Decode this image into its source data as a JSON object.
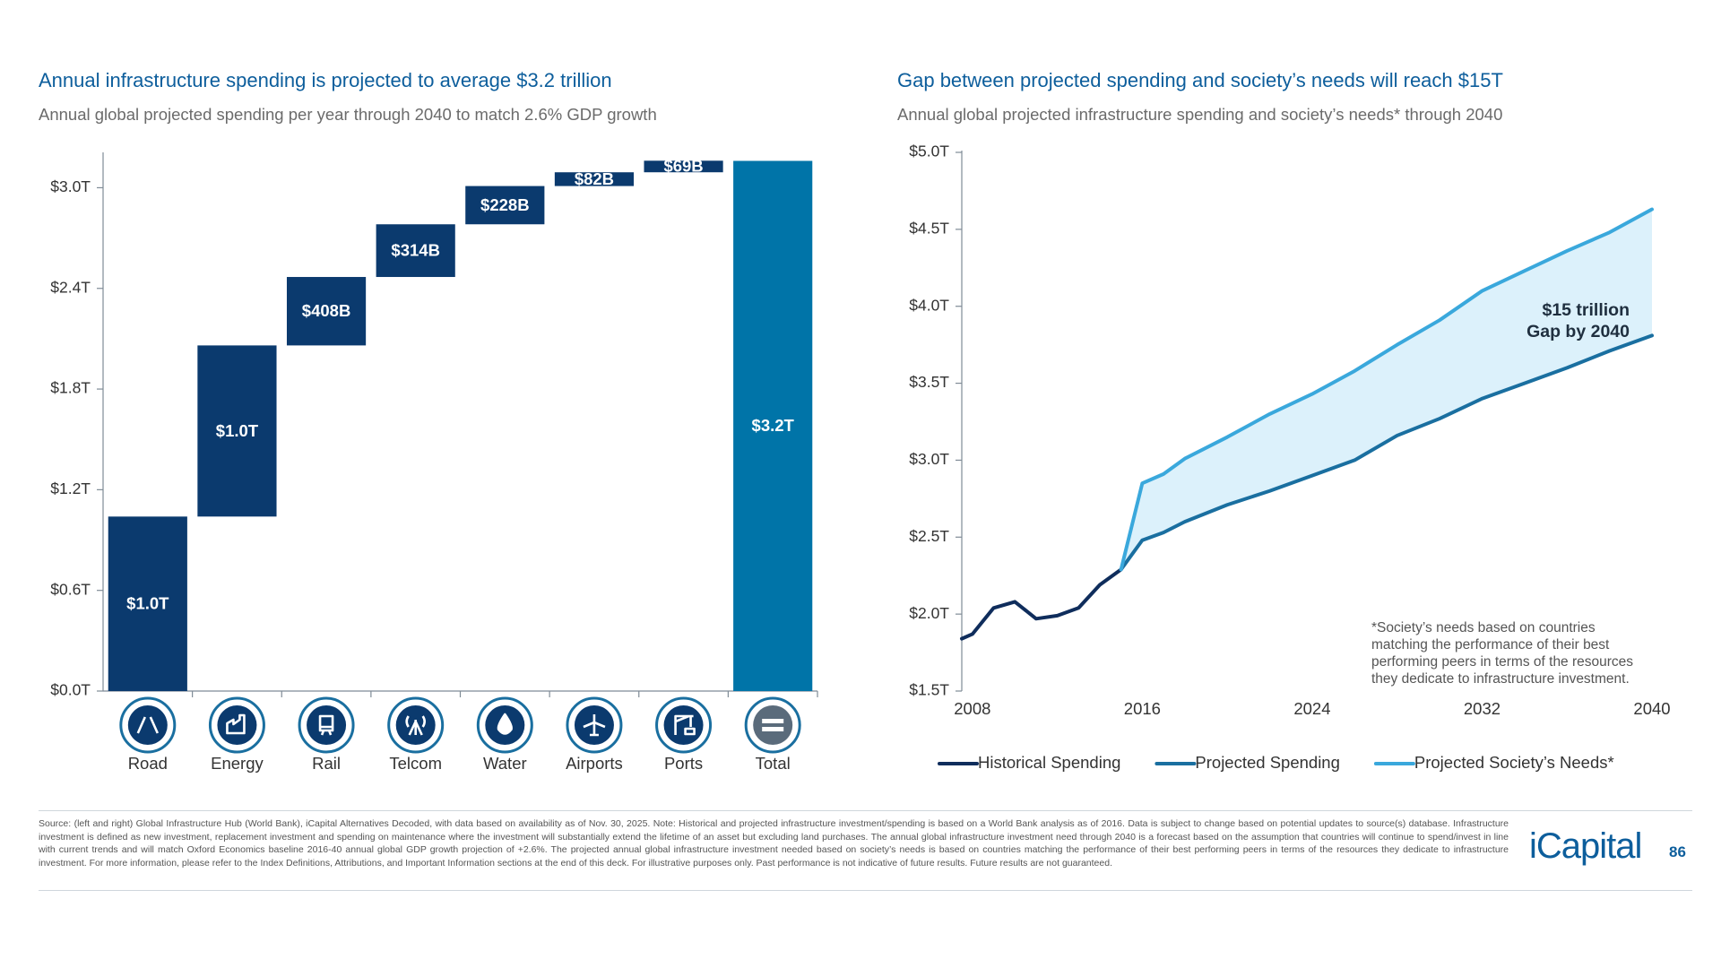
{
  "chart_data": [
    {
      "type": "waterfall",
      "title": "Annual infrastructure spending is projected to average $3.2 trillion",
      "subtitle": "Annual global projected spending per year through 2040 to match 2.6% GDP growth",
      "categories": [
        "Road",
        "Energy",
        "Rail",
        "Telcom",
        "Water",
        "Airports",
        "Ports",
        "Total"
      ],
      "values": [
        1.04,
        1.02,
        0.408,
        0.314,
        0.228,
        0.082,
        0.069,
        3.16
      ],
      "value_labels": [
        "$1.0T",
        "$1.0T",
        "$408B",
        "$314B",
        "$228B",
        "$82B",
        "$69B",
        "$3.2T"
      ],
      "color": "#0b3a6e",
      "total_color": "#0074a8",
      "ylim": [
        0,
        3.2
      ],
      "yticks": [
        {
          "value": 0,
          "label": "$0.0T"
        },
        {
          "value": 0.6,
          "label": "$0.6T"
        },
        {
          "value": 1.2,
          "label": "$1.2T"
        },
        {
          "value": 1.8,
          "label": "$1.8T"
        },
        {
          "value": 2.4,
          "label": "$2.4T"
        },
        {
          "value": 3.0,
          "label": "$3.0T"
        }
      ],
      "grid": false
    },
    {
      "type": "line",
      "title": "Gap between projected spending and society’s needs will reach $15T",
      "subtitle": "Annual global projected infrastructure spending and society’s needs* through 2040",
      "series": [
        {
          "name": "Historical Spending",
          "color": "#0f2d5c",
          "x": [
            2007.5,
            2008,
            2009,
            2010,
            2011,
            2012,
            2013,
            2014,
            2015
          ],
          "values": [
            1.84,
            1.87,
            2.04,
            2.08,
            1.97,
            1.99,
            2.04,
            2.19,
            2.29
          ]
        },
        {
          "name": "Projected Spending",
          "color": "#1a6fa0",
          "x": [
            2015,
            2016,
            2017,
            2018,
            2020,
            2022,
            2024,
            2026,
            2028,
            2030,
            2032,
            2034,
            2036,
            2038,
            2040
          ],
          "values": [
            2.29,
            2.48,
            2.53,
            2.6,
            2.71,
            2.8,
            2.9,
            3.0,
            3.16,
            3.27,
            3.4,
            3.5,
            3.6,
            3.71,
            3.81
          ]
        },
        {
          "name": "Projected Society’s Needs*",
          "color": "#3aa8dc",
          "x": [
            2015,
            2016,
            2017,
            2018,
            2020,
            2022,
            2024,
            2026,
            2028,
            2030,
            2032,
            2034,
            2036,
            2038,
            2040
          ],
          "values": [
            2.29,
            2.85,
            2.91,
            3.01,
            3.15,
            3.3,
            3.43,
            3.58,
            3.75,
            3.91,
            4.1,
            4.23,
            4.36,
            4.48,
            4.63
          ]
        }
      ],
      "fill_color": "#dcf1fb",
      "xlim": [
        2007.5,
        2040
      ],
      "xticks": [
        2008,
        2016,
        2024,
        2032,
        2040
      ],
      "ylim": [
        1.5,
        5.0
      ],
      "yticks": [
        {
          "value": 1.5,
          "label": "$1.5T"
        },
        {
          "value": 2.0,
          "label": "$2.0T"
        },
        {
          "value": 2.5,
          "label": "$2.5T"
        },
        {
          "value": 3.0,
          "label": "$3.0T"
        },
        {
          "value": 3.5,
          "label": "$3.5T"
        },
        {
          "value": 4.0,
          "label": "$4.0T"
        },
        {
          "value": 4.5,
          "label": "$4.5T"
        },
        {
          "value": 5.0,
          "label": "$5.0T"
        }
      ],
      "annotation": [
        "$15 trillion",
        "Gap by 2040"
      ],
      "footnote": [
        "*Society’s needs based on countries",
        "matching the performance of their best",
        "performing peers in terms of the resources",
        "they dedicate to infrastructure investment."
      ],
      "legend": "bottom",
      "grid": false
    }
  ],
  "source": "Source: (left and right) Global Infrastructure Hub (World Bank), iCapital Alternatives Decoded, with data based on availability as of Nov. 30, 2025. Note: Historical and projected infrastructure investment/spending is based on a World Bank analysis as of 2016. Data is subject to change based on potential updates to source(s) database. Infrastructure investment is defined as new investment, replacement investment and spending on maintenance where the investment will substantially extend the lifetime of an asset but excluding land purchases. The annual global infrastructure investment need through 2040 is a forecast based on the assumption that countries will continue to spend/invest in line with current trends and will match Oxford Economics baseline 2016-40 annual global GDP growth projection of +2.6%. The projected annual global infrastructure investment needed based on society’s needs is based on countries matching the performance of their best performing peers in terms of the resources they dedicate to infrastructure investment. For more information, please refer to the Index Definitions, Attributions, and Important Information sections at the end of this deck. For illustrative purposes only. Past performance is not indicative of future results. Future results are not guaranteed.",
  "logo": "iCapital",
  "page_number": "86"
}
